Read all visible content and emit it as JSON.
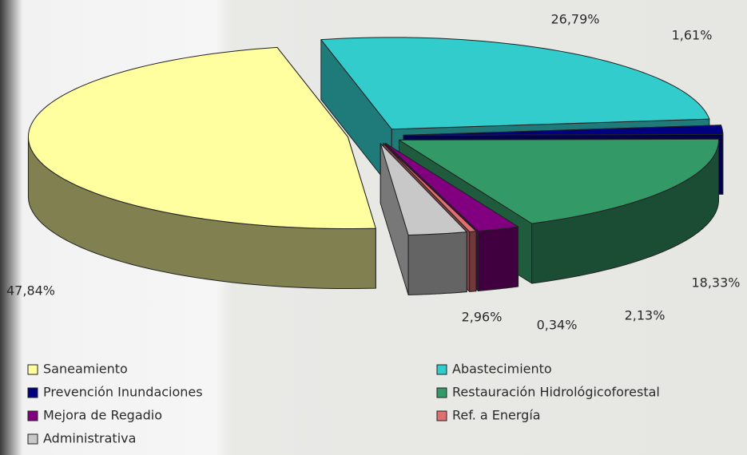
{
  "chart_data": {
    "type": "pie",
    "categories": [
      "Saneamiento",
      "Abastecimiento",
      "Prevención Inundaciones",
      "Restauración Hidrológicoforestal",
      "Mejora de Regadio",
      "Ref. a Energía",
      "Administrativa"
    ],
    "values": [
      47.84,
      26.79,
      1.61,
      18.33,
      2.13,
      0.34,
      2.96
    ],
    "value_labels": [
      "47,84%",
      "26,79%",
      "1,61%",
      "18,33%",
      "2,13%",
      "0,34%",
      "2,96%"
    ],
    "colors": [
      "#ffffa0",
      "#33cccc",
      "#000080",
      "#339966",
      "#800080",
      "#e07070",
      "#c8c8c8"
    ]
  }
}
